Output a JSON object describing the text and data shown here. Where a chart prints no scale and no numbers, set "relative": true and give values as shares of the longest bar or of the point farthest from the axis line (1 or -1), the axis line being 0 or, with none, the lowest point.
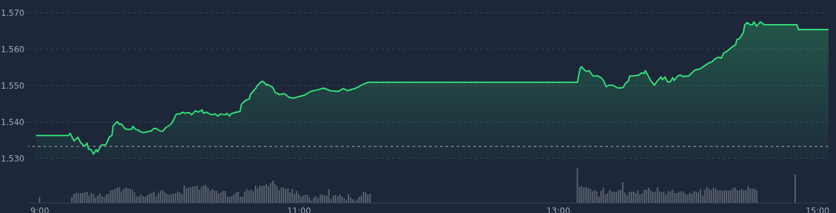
{
  "chart_data": [
    {
      "type": "area",
      "color": "#34e27a",
      "grid": "y",
      "tick_labels": "y",
      "xlim": [
        8.94,
        15.06
      ],
      "ylim": [
        1.53,
        1.57
      ],
      "yticks": [
        {
          "value": 1.53,
          "label": "1.530"
        },
        {
          "value": 1.54,
          "label": "1.540"
        },
        {
          "value": 1.55,
          "label": "1.550"
        },
        {
          "value": 1.56,
          "label": "1.560"
        },
        {
          "value": 1.57,
          "label": "1.570"
        }
      ],
      "ref_lines": [
        {
          "axis": "y",
          "value": 1.5332,
          "color": "#8b93a1",
          "line_style": "dashed"
        }
      ],
      "x": [
        9.0,
        9.25,
        9.26,
        9.29,
        9.32,
        9.34,
        9.37,
        9.39,
        9.4,
        9.42,
        9.44,
        9.46,
        9.47,
        9.5,
        9.53,
        9.54,
        9.56,
        9.58,
        9.59,
        9.62,
        9.64,
        9.65,
        9.68,
        9.69,
        9.73,
        9.74,
        9.76,
        9.78,
        9.8,
        9.82,
        9.85,
        9.88,
        9.9,
        9.92,
        9.95,
        9.97,
        9.99,
        10.03,
        10.05,
        10.07,
        10.08,
        10.1,
        10.12,
        10.14,
        10.17,
        10.19,
        10.22,
        10.24,
        10.27,
        10.28,
        10.3,
        10.34,
        10.37,
        10.39,
        10.41,
        10.45,
        10.46,
        10.48,
        10.49,
        10.52,
        10.56,
        10.57,
        10.6,
        10.63,
        10.64,
        10.68,
        10.69,
        10.72,
        10.73,
        10.75,
        10.76,
        10.77,
        10.81,
        10.83,
        10.85,
        10.86,
        10.9,
        10.93,
        10.94,
        10.97,
        11.0,
        11.05,
        11.1,
        11.15,
        11.2,
        11.25,
        11.31,
        11.35,
        11.38,
        11.44,
        11.51,
        11.54,
        13.14,
        13.16,
        13.17,
        13.2,
        13.21,
        13.23,
        13.26,
        13.29,
        13.32,
        13.34,
        13.36,
        13.38,
        13.41,
        13.44,
        13.46,
        13.49,
        13.51,
        13.53,
        13.54,
        13.58,
        13.61,
        13.63,
        13.65,
        13.66,
        13.7,
        13.73,
        13.75,
        13.78,
        13.79,
        13.81,
        13.83,
        13.85,
        13.87,
        13.88,
        13.91,
        13.93,
        13.95,
        13.97,
        13.99,
        14.04,
        14.08,
        14.12,
        14.15,
        14.17,
        14.19,
        14.22,
        14.24,
        14.26,
        14.28,
        14.32,
        14.35,
        14.36,
        14.38,
        14.41,
        14.42,
        14.44,
        14.46,
        14.48,
        14.49,
        14.51,
        14.54,
        14.57,
        14.82,
        14.83,
        15.06
      ],
      "values": [
        1.5362,
        1.5362,
        1.5368,
        1.5347,
        1.5357,
        1.5343,
        1.5332,
        1.5341,
        1.5325,
        1.5323,
        1.5311,
        1.5323,
        1.5317,
        1.5336,
        1.5336,
        1.5341,
        1.5358,
        1.5362,
        1.5389,
        1.54,
        1.5392,
        1.5394,
        1.5381,
        1.5379,
        1.5379,
        1.5387,
        1.5379,
        1.5377,
        1.5372,
        1.537,
        1.5372,
        1.5374,
        1.5381,
        1.5381,
        1.5374,
        1.5374,
        1.5383,
        1.5392,
        1.5404,
        1.5419,
        1.5421,
        1.5421,
        1.5426,
        1.5423,
        1.5425,
        1.5419,
        1.543,
        1.5426,
        1.5432,
        1.5423,
        1.5426,
        1.5419,
        1.5421,
        1.5415,
        1.5421,
        1.5419,
        1.5423,
        1.5415,
        1.5421,
        1.5425,
        1.5428,
        1.5447,
        1.5458,
        1.5462,
        1.5475,
        1.5491,
        1.5498,
        1.5509,
        1.5511,
        1.5506,
        1.55,
        1.5502,
        1.5494,
        1.5479,
        1.5477,
        1.5474,
        1.5477,
        1.5468,
        1.5466,
        1.5464,
        1.5468,
        1.5472,
        1.5483,
        1.5487,
        1.5492,
        1.5485,
        1.5483,
        1.5491,
        1.5485,
        1.5491,
        1.5504,
        1.5508,
        1.5508,
        1.5545,
        1.5551,
        1.554,
        1.5538,
        1.554,
        1.5525,
        1.5526,
        1.5521,
        1.5513,
        1.5496,
        1.55,
        1.55,
        1.5494,
        1.5492,
        1.5494,
        1.5506,
        1.5511,
        1.5525,
        1.5526,
        1.5528,
        1.5534,
        1.5532,
        1.554,
        1.5513,
        1.55,
        1.5511,
        1.5523,
        1.5515,
        1.5523,
        1.5509,
        1.5509,
        1.5521,
        1.5513,
        1.5526,
        1.5528,
        1.5523,
        1.5525,
        1.5525,
        1.5542,
        1.5545,
        1.5555,
        1.5562,
        1.5564,
        1.5572,
        1.5577,
        1.5574,
        1.5589,
        1.5592,
        1.5604,
        1.5611,
        1.5625,
        1.5628,
        1.5645,
        1.5666,
        1.5672,
        1.5666,
        1.5666,
        1.5674,
        1.5662,
        1.5674,
        1.5666,
        1.5666,
        1.5653,
        1.5653
      ]
    },
    {
      "type": "bar",
      "color": "#5b6372",
      "relative": true,
      "tick_labels": "x",
      "xlim": [
        8.94,
        15.06
      ],
      "xticks": [
        {
          "value": 9,
          "label": "9:00"
        },
        {
          "value": 11,
          "label": "11:00"
        },
        {
          "value": 13,
          "label": "13:00"
        },
        {
          "value": 15,
          "label": "15:00"
        }
      ],
      "x": [
        9,
        9.25,
        9.267,
        9.283,
        9.3,
        9.317,
        9.333,
        9.35,
        9.367,
        9.383,
        9.4,
        9.417,
        9.433,
        9.45,
        9.467,
        9.483,
        9.5,
        9.517,
        9.533,
        9.55,
        9.567,
        9.583,
        9.6,
        9.617,
        9.633,
        9.65,
        9.667,
        9.683,
        9.7,
        9.717,
        9.733,
        9.75,
        9.767,
        9.783,
        9.8,
        9.817,
        9.833,
        9.85,
        9.867,
        9.883,
        9.9,
        9.917,
        9.933,
        9.95,
        9.967,
        9.983,
        10,
        10.017,
        10.033,
        10.05,
        10.067,
        10.083,
        10.1,
        10.117,
        10.133,
        10.15,
        10.167,
        10.183,
        10.2,
        10.217,
        10.233,
        10.25,
        10.267,
        10.283,
        10.3,
        10.317,
        10.333,
        10.35,
        10.367,
        10.383,
        10.4,
        10.417,
        10.433,
        10.45,
        10.467,
        10.483,
        10.5,
        10.517,
        10.533,
        10.55,
        10.567,
        10.583,
        10.6,
        10.617,
        10.633,
        10.65,
        10.667,
        10.683,
        10.7,
        10.717,
        10.733,
        10.75,
        10.767,
        10.783,
        10.8,
        10.817,
        10.833,
        10.85,
        10.867,
        10.883,
        10.9,
        10.917,
        10.933,
        10.95,
        10.967,
        10.983,
        11,
        11.017,
        11.033,
        11.05,
        11.067,
        11.083,
        11.1,
        11.117,
        11.133,
        11.15,
        11.167,
        11.183,
        11.2,
        11.217,
        11.233,
        11.25,
        11.267,
        11.283,
        11.3,
        11.317,
        11.333,
        11.35,
        11.367,
        11.383,
        11.4,
        11.417,
        11.433,
        11.45,
        11.467,
        11.483,
        11.5,
        11.517,
        11.533,
        11.55,
        13.15,
        13.167,
        13.183,
        13.2,
        13.217,
        13.233,
        13.25,
        13.267,
        13.283,
        13.3,
        13.317,
        13.333,
        13.35,
        13.367,
        13.383,
        13.4,
        13.417,
        13.433,
        13.45,
        13.467,
        13.483,
        13.5,
        13.517,
        13.533,
        13.55,
        13.567,
        13.583,
        13.6,
        13.617,
        13.633,
        13.65,
        13.667,
        13.683,
        13.7,
        13.717,
        13.733,
        13.75,
        13.767,
        13.783,
        13.8,
        13.817,
        13.833,
        13.85,
        13.867,
        13.883,
        13.9,
        13.917,
        13.933,
        13.95,
        13.967,
        13.983,
        14,
        14.017,
        14.033,
        14.05,
        14.067,
        14.083,
        14.1,
        14.117,
        14.133,
        14.15,
        14.167,
        14.183,
        14.2,
        14.217,
        14.233,
        14.25,
        14.267,
        14.283,
        14.3,
        14.317,
        14.333,
        14.35,
        14.367,
        14.383,
        14.4,
        14.417,
        14.433,
        14.45,
        14.467,
        14.483,
        14.5,
        14.517,
        14.533,
        14.83
      ],
      "values": [
        0.17,
        0.17,
        0.26,
        0.29,
        0.28,
        0.28,
        0.29,
        0.3,
        0.32,
        0.21,
        0.29,
        0.25,
        0.15,
        0.21,
        0.27,
        0.18,
        0.17,
        0.25,
        0.26,
        0.37,
        0.37,
        0.4,
        0.44,
        0.45,
        0.33,
        0.4,
        0.45,
        0.42,
        0.4,
        0.38,
        0.3,
        0.19,
        0.18,
        0.25,
        0.19,
        0.17,
        0.22,
        0.26,
        0.28,
        0.32,
        0.18,
        0.28,
        0.35,
        0.36,
        0.3,
        0.25,
        0.23,
        0.25,
        0.26,
        0.28,
        0.32,
        0.3,
        0.25,
        0.5,
        0.42,
        0.45,
        0.45,
        0.47,
        0.48,
        0.5,
        0.38,
        0.47,
        0.5,
        0.52,
        0.44,
        0.35,
        0.4,
        0.36,
        0.35,
        0.27,
        0.3,
        0.34,
        0.34,
        0.18,
        0.17,
        0.19,
        0.25,
        0.3,
        0.32,
        0.17,
        0.17,
        0.32,
        0.4,
        0.35,
        0.38,
        0.33,
        0.5,
        0.42,
        0.5,
        0.48,
        0.5,
        0.54,
        0.48,
        0.57,
        0.64,
        0.54,
        0.47,
        0.37,
        0.45,
        0.44,
        0.4,
        0.42,
        0.3,
        0.4,
        0.25,
        0.34,
        0.25,
        0.17,
        0.21,
        0.23,
        0.23,
        0.15,
        0.06,
        0.15,
        0.19,
        0.13,
        0.23,
        0.23,
        0.21,
        0.21,
        0.4,
        0.11,
        0.21,
        0.22,
        0.18,
        0.25,
        0.18,
        0.13,
        0.07,
        0.25,
        0.16,
        0.1,
        0.05,
        0.09,
        0.17,
        0.21,
        0.32,
        0.3,
        0.23,
        0.26,
        1.0,
        0.46,
        0.48,
        0.44,
        0.45,
        0.42,
        0.4,
        0.33,
        0.37,
        0.33,
        0.18,
        0.35,
        0.44,
        0.23,
        0.28,
        0.37,
        0.33,
        0.32,
        0.32,
        0.37,
        0.37,
        0.6,
        0.3,
        0.21,
        0.32,
        0.32,
        0.32,
        0.28,
        0.36,
        0.23,
        0.28,
        0.38,
        0.38,
        0.44,
        0.36,
        0.3,
        0.32,
        0.44,
        0.33,
        0.3,
        0.32,
        0.23,
        0.33,
        0.32,
        0.37,
        0.28,
        0.28,
        0.32,
        0.33,
        0.32,
        0.26,
        0.23,
        0.29,
        0.26,
        0.33,
        0.32,
        0.3,
        0.4,
        0.21,
        0.37,
        0.45,
        0.4,
        0.37,
        0.44,
        0.41,
        0.36,
        0.36,
        0.34,
        0.36,
        0.36,
        0.36,
        0.36,
        0.42,
        0.44,
        0.36,
        0.36,
        0.4,
        0.36,
        0.37,
        0.48,
        0.42,
        0.41,
        0.41,
        0.36,
        0.82
      ]
    }
  ]
}
